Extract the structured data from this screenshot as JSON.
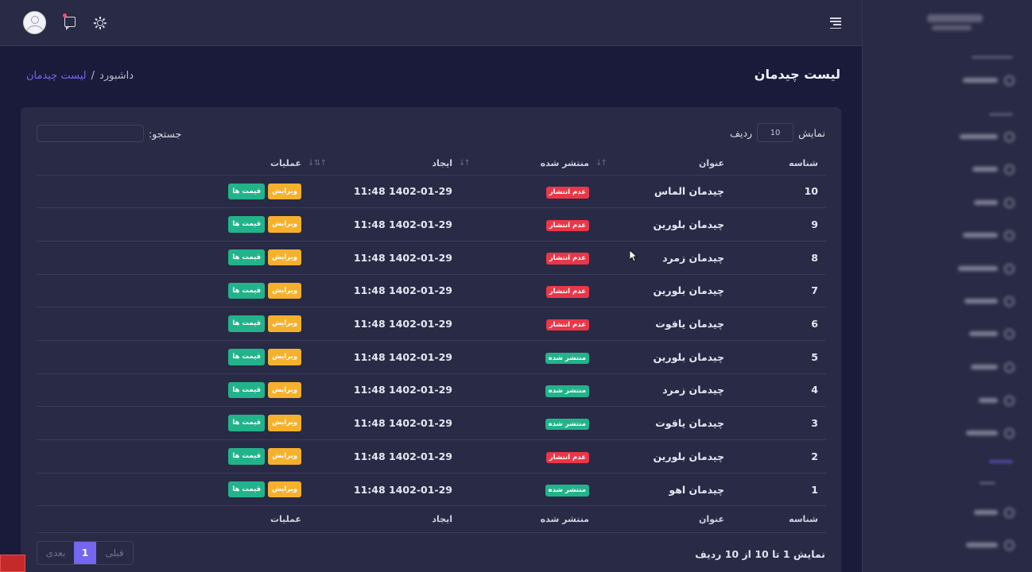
{
  "header": {
    "avatar_icon": "user-avatar-icon",
    "chat_icon": "chat-icon",
    "theme_icon": "sun-icon",
    "menu_icon": "hamburger-menu-icon"
  },
  "page": {
    "title": "لیست چیدمان",
    "breadcrumb": {
      "home": "داشبورد",
      "separator": "/",
      "current": "لیست چیدمان"
    }
  },
  "controls": {
    "show_label": "نمایش",
    "length_value": "10",
    "rows_label": "ردیف",
    "search_label": "جستجو:",
    "search_value": ""
  },
  "table": {
    "columns": {
      "id": "شناسه",
      "title": "عنوان",
      "published": "منتشر شده",
      "created": "ایجاد",
      "actions": "عملیات"
    },
    "edit_label": "ویرایش",
    "price_label": "قیمت ها",
    "rows": [
      {
        "id": "10",
        "title": "چیدمان الماس",
        "status": "عدم انتشار",
        "published": false,
        "created": "1402-01-29 11:48"
      },
      {
        "id": "9",
        "title": "چیدمان بلورین",
        "status": "عدم انتشار",
        "published": false,
        "created": "1402-01-29 11:48"
      },
      {
        "id": "8",
        "title": "چیدمان زمرد",
        "status": "عدم انتشار",
        "published": false,
        "created": "1402-01-29 11:48"
      },
      {
        "id": "7",
        "title": "چیدمان بلورین",
        "status": "عدم انتشار",
        "published": false,
        "created": "1402-01-29 11:48"
      },
      {
        "id": "6",
        "title": "چیدمان یاقوت",
        "status": "عدم انتشار",
        "published": false,
        "created": "1402-01-29 11:48"
      },
      {
        "id": "5",
        "title": "چیدمان بلورین",
        "status": "منتشر شده",
        "published": true,
        "created": "1402-01-29 11:48"
      },
      {
        "id": "4",
        "title": "چیدمان زمرد",
        "status": "منتشر شده",
        "published": true,
        "created": "1402-01-29 11:48"
      },
      {
        "id": "3",
        "title": "چیدمان یاقوت",
        "status": "منتشر شده",
        "published": true,
        "created": "1402-01-29 11:48"
      },
      {
        "id": "2",
        "title": "چیدمان بلورین",
        "status": "عدم انتشار",
        "published": false,
        "created": "1402-01-29 11:48"
      },
      {
        "id": "1",
        "title": "چیدمان اهو",
        "status": "منتشر شده",
        "published": true,
        "created": "1402-01-29 11:48"
      }
    ]
  },
  "footer": {
    "info": "نمایش 1 تا 10 از 10 ردیف",
    "prev": "قبلی",
    "current_page": "1",
    "next": "بعدی"
  },
  "colors": {
    "accent": "#7367f0",
    "unpublished": "#ea3748",
    "published": "#22b38a",
    "edit": "#f5b12d",
    "card_bg": "#292a45",
    "page_bg": "#1a1b3a"
  }
}
